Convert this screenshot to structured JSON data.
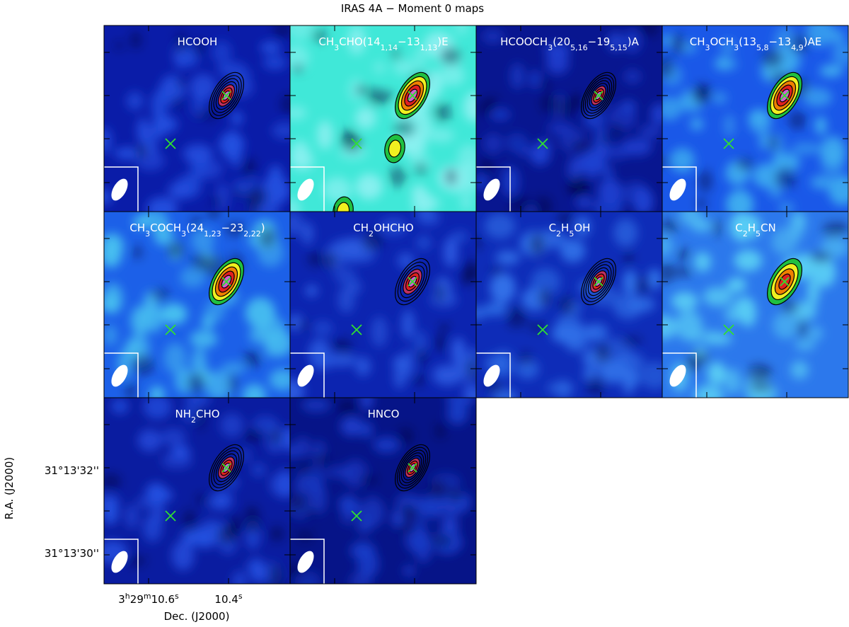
{
  "title": "IRAS 4A − Moment 0 maps",
  "panels": [
    {
      "label": [
        "HCOOH"
      ]
    },
    {
      "label": [
        "CH",
        {
          "sub": "3"
        },
        "CHO(14",
        {
          "sub": "1,14"
        },
        "−13",
        {
          "sub": "1,13"
        },
        ")E"
      ]
    },
    {
      "label": [
        "HCOOCH",
        {
          "sub": "3"
        },
        "(20",
        {
          "sub": "5,16"
        },
        "−19",
        {
          "sub": "5,15"
        },
        ")A"
      ]
    },
    {
      "label": [
        "CH",
        {
          "sub": "3"
        },
        "OCH",
        {
          "sub": "3"
        },
        "(13",
        {
          "sub": "5,8"
        },
        "−13",
        {
          "sub": "4,9"
        },
        ")AE"
      ]
    },
    {
      "label": [
        "CH",
        {
          "sub": "3"
        },
        "COCH",
        {
          "sub": "3"
        },
        "(24",
        {
          "sub": "1,23"
        },
        "−23",
        {
          "sub": "2,22"
        },
        ")"
      ]
    },
    {
      "label": [
        "CH",
        {
          "sub": "2"
        },
        "OHCHO"
      ]
    },
    {
      "label": [
        "C",
        {
          "sub": "2"
        },
        "H",
        {
          "sub": "5"
        },
        "OH"
      ]
    },
    {
      "label": [
        "C",
        {
          "sub": "2"
        },
        "H",
        {
          "sub": "5"
        },
        "CN"
      ]
    },
    {
      "label": [
        "NH",
        {
          "sub": "2"
        },
        "CHO"
      ]
    },
    {
      "label": [
        "HNCO"
      ]
    }
  ],
  "y_axis": {
    "label": "R.A. (J2000)",
    "ticks": [
      "31°13'32''",
      "31°13'30''"
    ]
  },
  "x_axis": {
    "label": "Dec. (J2000)",
    "ticks": [
      [
        "3",
        {
          "sup": "h"
        },
        "29",
        {
          "sup": "m"
        },
        "10.6",
        {
          "sup": "s"
        }
      ],
      [
        "10.4",
        {
          "sup": "s"
        }
      ]
    ]
  }
}
